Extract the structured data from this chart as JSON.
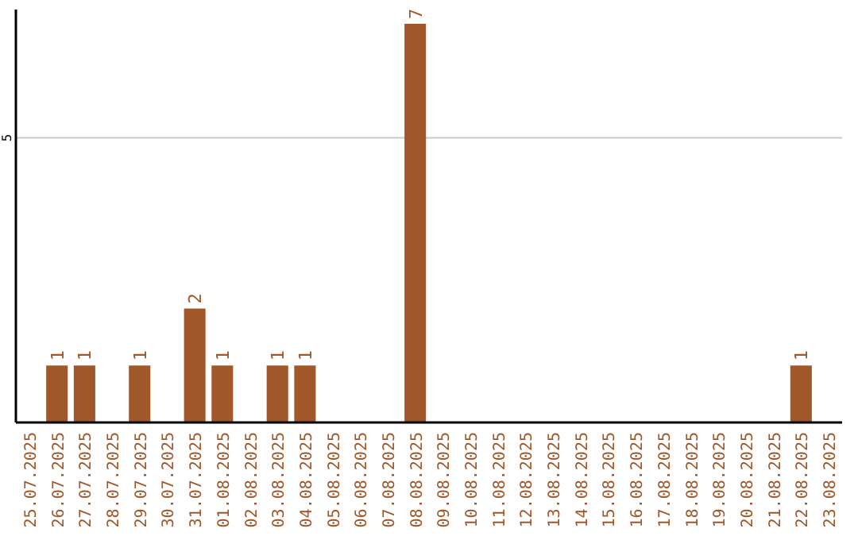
{
  "chart_data": {
    "type": "bar",
    "categories": [
      "25.07.2025",
      "26.07.2025",
      "27.07.2025",
      "28.07.2025",
      "29.07.2025",
      "30.07.2025",
      "31.07.2025",
      "01.08.2025",
      "02.08.2025",
      "03.08.2025",
      "04.08.2025",
      "05.08.2025",
      "06.08.2025",
      "07.08.2025",
      "08.08.2025",
      "09.08.2025",
      "10.08.2025",
      "11.08.2025",
      "12.08.2025",
      "13.08.2025",
      "14.08.2025",
      "15.08.2025",
      "16.08.2025",
      "17.08.2025",
      "18.08.2025",
      "19.08.2025",
      "20.08.2025",
      "21.08.2025",
      "22.08.2025",
      "23.08.2025"
    ],
    "values": [
      0,
      1,
      1,
      0,
      1,
      0,
      2,
      1,
      0,
      1,
      1,
      0,
      0,
      0,
      7,
      0,
      0,
      0,
      0,
      0,
      0,
      0,
      0,
      0,
      0,
      0,
      0,
      0,
      1,
      0
    ],
    "value_labels": [
      null,
      "1",
      "1",
      null,
      "1",
      null,
      "2",
      "1",
      null,
      "1",
      "1",
      null,
      null,
      null,
      "7",
      null,
      null,
      null,
      null,
      null,
      null,
      null,
      null,
      null,
      null,
      null,
      null,
      null,
      "1",
      null
    ],
    "color": "#a0572a",
    "ylim": [
      0,
      7.25
    ],
    "yticks": [
      5
    ],
    "grid": "y"
  }
}
